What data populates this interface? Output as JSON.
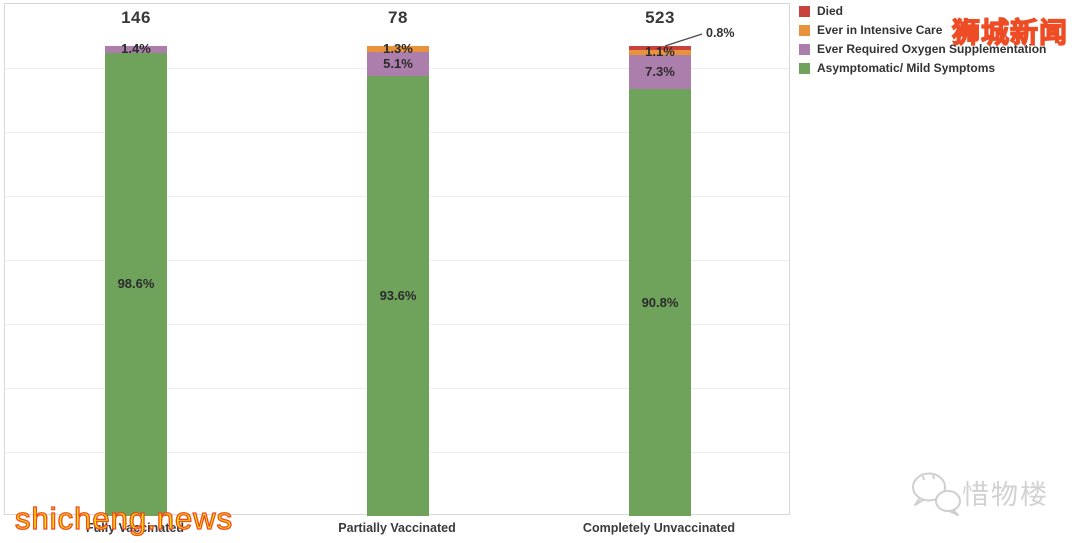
{
  "chart_data": {
    "type": "bar",
    "stacked": true,
    "orientation": "vertical",
    "title": "",
    "xlabel": "",
    "ylabel": "",
    "ylim": [
      0,
      100
    ],
    "grid": true,
    "legend_position": "top-right",
    "categories": [
      "Fully Vaccinated",
      "Partially Vaccinated",
      "Completely Unvaccinated"
    ],
    "bar_totals": [
      146,
      78,
      523
    ],
    "series": [
      {
        "name": "Died",
        "color": "#C8433D",
        "values": [
          0,
          0,
          0.8
        ]
      },
      {
        "name": "Ever in Intensive Care",
        "color": "#E8923C",
        "values": [
          0,
          1.3,
          1.1
        ]
      },
      {
        "name": "Ever Required Oxygen Supplementation",
        "color": "#AB7EAC",
        "values": [
          1.4,
          5.1,
          7.3
        ]
      },
      {
        "name": "Asymptomatic/ Mild Symptoms",
        "color": "#6FA35C",
        "values": [
          98.6,
          93.6,
          90.8
        ]
      }
    ],
    "value_labels": {
      "Fully Vaccinated": [
        "1.4%",
        "98.6%"
      ],
      "Partially Vaccinated": [
        "1.3%",
        "5.1%",
        "93.6%"
      ],
      "Completely Unvaccinated": [
        "0.8%",
        "1.1%",
        "7.3%",
        "90.8%"
      ]
    },
    "callout": {
      "series": "Died",
      "category": "Completely Unvaccinated",
      "label": "0.8%"
    }
  },
  "watermarks": {
    "top_right": "狮城新闻",
    "bottom_left": "shicheng.news",
    "bottom_right": "惜物楼"
  }
}
